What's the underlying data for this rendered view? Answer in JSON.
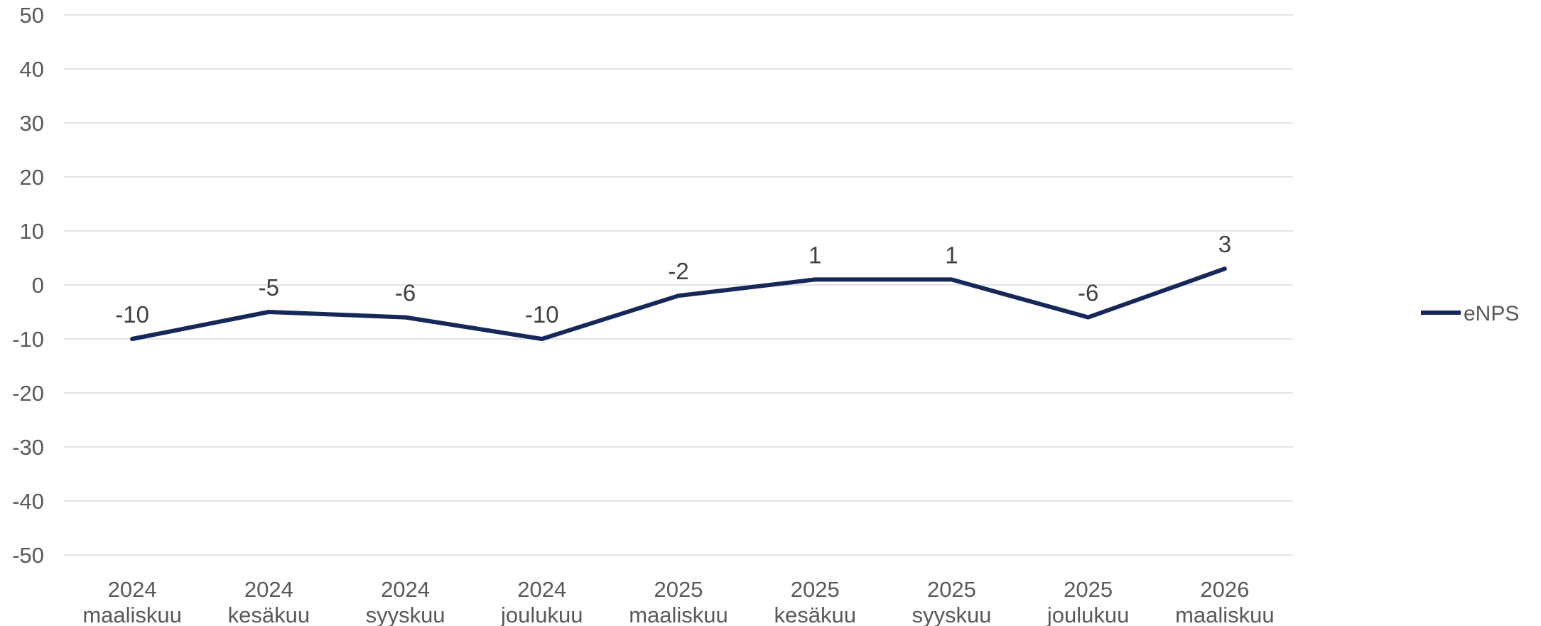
{
  "chart_data": {
    "type": "line",
    "title": "",
    "xlabel": "",
    "ylabel": "",
    "categories": [
      [
        "2024",
        "maaliskuu"
      ],
      [
        "2024",
        "kesäkuu"
      ],
      [
        "2024",
        "syyskuu"
      ],
      [
        "2024",
        "joulukuu"
      ],
      [
        "2025",
        "maaliskuu"
      ],
      [
        "2025",
        "kesäkuu"
      ],
      [
        "2025",
        "syyskuu"
      ],
      [
        "2025",
        "joulukuu"
      ],
      [
        "2026",
        "maaliskuu"
      ]
    ],
    "series": [
      {
        "name": "eNPS",
        "values": [
          -10,
          -5,
          -6,
          -10,
          -2,
          1,
          1,
          -6,
          3
        ],
        "color": "#16285a"
      }
    ],
    "ylim": [
      -50,
      50
    ],
    "yticks": [
      50,
      40,
      30,
      20,
      10,
      0,
      -10,
      -20,
      -30,
      -40,
      -50
    ],
    "grid": true,
    "gridline_color": "#d9d9d9",
    "legend_position": "right",
    "data_labels": true
  }
}
